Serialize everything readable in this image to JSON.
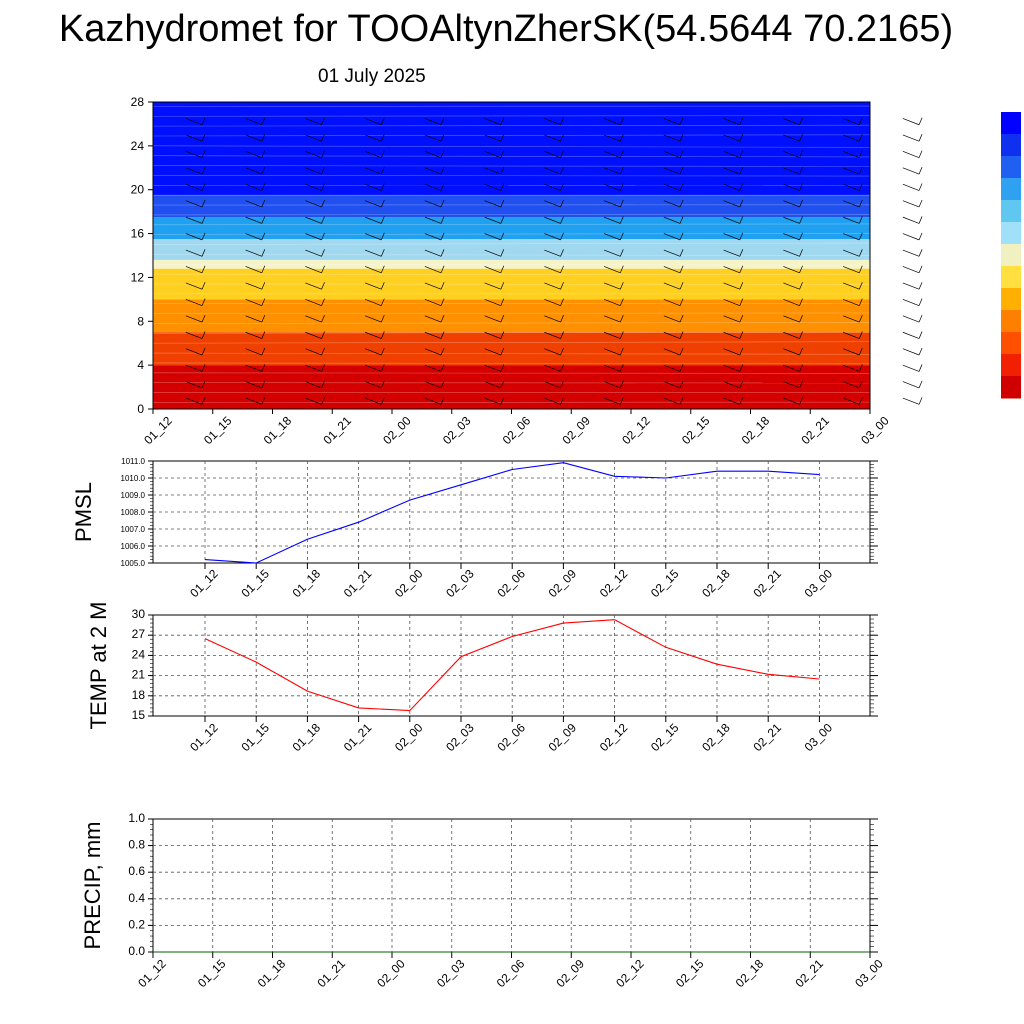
{
  "header": {
    "title": "Kazhydromet for TOOAltynZherSK(54.5644 70.2165)",
    "date": "01 July 2025"
  },
  "colors": {
    "pmsl_line": "#0000ff",
    "temp_line": "#ff0000",
    "precip_line": "#006400"
  },
  "chart_data": [
    {
      "type": "heatmap",
      "categories": [
        "01_12",
        "01_15",
        "01_18",
        "01_21",
        "02_00",
        "02_03",
        "02_06",
        "02_09",
        "02_12",
        "02_15",
        "02_18",
        "02_21",
        "03_00"
      ],
      "yticks": [
        "0",
        "4",
        "8",
        "12",
        "16",
        "20",
        "24",
        "28"
      ],
      "ylim": [
        0,
        28
      ],
      "bands": [
        {
          "from": 0,
          "to": 4,
          "color": "#d40000"
        },
        {
          "from": 4,
          "to": 7,
          "color": "#f04000"
        },
        {
          "from": 7,
          "to": 10,
          "color": "#ff9000"
        },
        {
          "from": 10,
          "to": 12.8,
          "color": "#ffd020"
        },
        {
          "from": 12.8,
          "to": 13.6,
          "color": "#f4f4c8"
        },
        {
          "from": 13.6,
          "to": 15.5,
          "color": "#a0d8f0"
        },
        {
          "from": 15.5,
          "to": 17.5,
          "color": "#20a0f0"
        },
        {
          "from": 17.5,
          "to": 19.5,
          "color": "#2050f0"
        },
        {
          "from": 19.5,
          "to": 28,
          "color": "#0010ff"
        }
      ],
      "colorbar": [
        "#0000ff",
        "#1030f0",
        "#2060f0",
        "#30a0f0",
        "#60c8f0",
        "#a0e0f8",
        "#f0f0c0",
        "#ffe040",
        "#ffb000",
        "#ff8000",
        "#ff5000",
        "#f02000",
        "#d00000"
      ]
    },
    {
      "type": "line",
      "ylabel": "PMSL",
      "categories": [
        "01_12",
        "01_15",
        "01_18",
        "01_21",
        "02_00",
        "02_03",
        "02_06",
        "02_09",
        "02_12",
        "02_15",
        "02_18",
        "02_21",
        "03_00"
      ],
      "yticks": [
        "1005.0",
        "1006.0",
        "1007.0",
        "1008.0",
        "1009.0",
        "1010.0",
        "1011.0"
      ],
      "ylim": [
        1005.0,
        1011.0
      ],
      "grid": true,
      "series": [
        {
          "values": [
            1005.2,
            1005.0,
            1006.4,
            1007.4,
            1008.7,
            1009.6,
            1010.5,
            1010.9,
            1010.1,
            1010.0,
            1010.4,
            1010.4,
            1010.2
          ]
        }
      ]
    },
    {
      "type": "line",
      "ylabel": "TEMP at 2 M",
      "categories": [
        "01_12",
        "01_15",
        "01_18",
        "01_21",
        "02_00",
        "02_03",
        "02_06",
        "02_09",
        "02_12",
        "02_15",
        "02_18",
        "02_21",
        "03_00"
      ],
      "yticks": [
        "15",
        "18",
        "21",
        "24",
        "27",
        "30"
      ],
      "ylim": [
        15,
        30
      ],
      "grid": true,
      "series": [
        {
          "values": [
            26.5,
            23.0,
            18.7,
            16.2,
            15.8,
            23.8,
            26.8,
            28.8,
            29.3,
            25.2,
            22.7,
            21.2,
            20.5
          ]
        }
      ]
    },
    {
      "type": "line",
      "ylabel": "PRECIP, mm",
      "categories": [
        "01_12",
        "01_15",
        "01_18",
        "01_21",
        "02_00",
        "02_03",
        "02_06",
        "02_09",
        "02_12",
        "02_15",
        "02_18",
        "02_21",
        "03_00"
      ],
      "yticks": [
        "0.0",
        "0.2",
        "0.4",
        "0.6",
        "0.8",
        "1.0"
      ],
      "ylim": [
        0,
        1.0
      ],
      "grid": true,
      "series": [
        {
          "values": [
            0,
            0,
            0,
            0,
            0,
            0,
            0,
            0,
            0,
            0,
            0,
            0,
            0
          ]
        }
      ]
    }
  ]
}
